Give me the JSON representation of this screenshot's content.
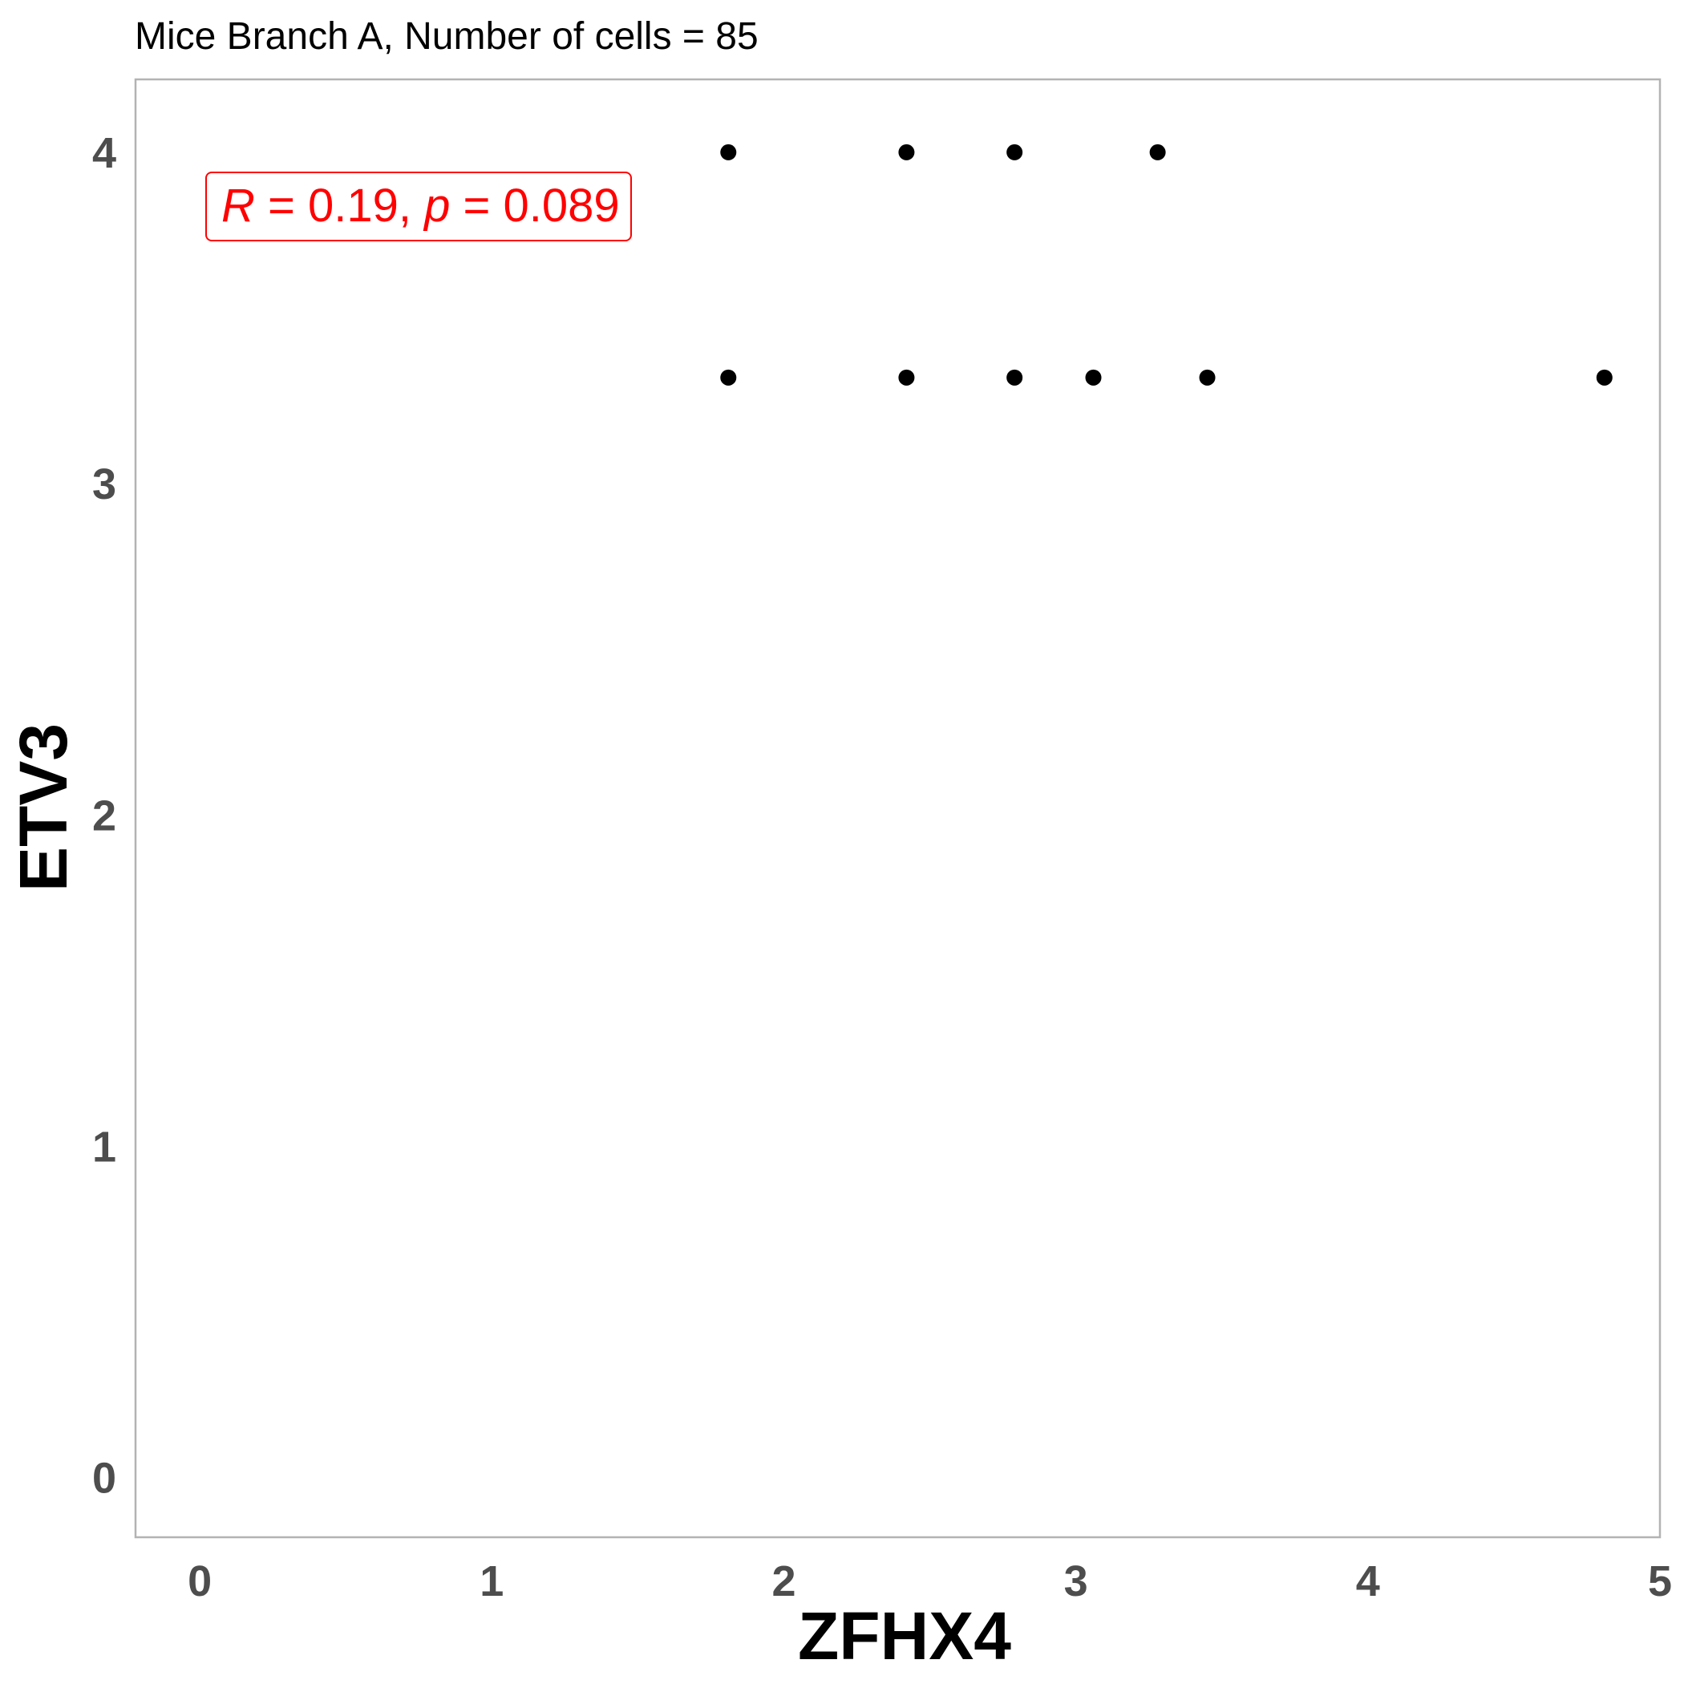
{
  "chart_data": {
    "type": "scatter",
    "title": "Mice Branch A, Number of cells = 85",
    "xlabel": "ZFHX4",
    "ylabel": "ETV3",
    "xlim": [
      -0.22,
      5.0
    ],
    "ylim": [
      -0.18,
      4.22
    ],
    "x_ticks": [
      "0",
      "1",
      "2",
      "3",
      "4",
      "5"
    ],
    "y_ticks": [
      "0",
      "1",
      "2",
      "3",
      "4"
    ],
    "grid": false,
    "point_color": "#000000",
    "points": [
      {
        "x": 1.81,
        "y": 4.0
      },
      {
        "x": 2.42,
        "y": 4.0
      },
      {
        "x": 2.79,
        "y": 4.0
      },
      {
        "x": 3.28,
        "y": 4.0
      },
      {
        "x": 1.81,
        "y": 3.32
      },
      {
        "x": 2.42,
        "y": 3.32
      },
      {
        "x": 2.79,
        "y": 3.32
      },
      {
        "x": 3.06,
        "y": 3.32
      },
      {
        "x": 3.45,
        "y": 3.32
      },
      {
        "x": 4.81,
        "y": 3.32
      }
    ],
    "annotation": {
      "r_label": "R",
      "r_value": "0.19",
      "p_label": "p",
      "p_value": "0.089",
      "color": "#ff0000",
      "placement": "top-left"
    }
  }
}
